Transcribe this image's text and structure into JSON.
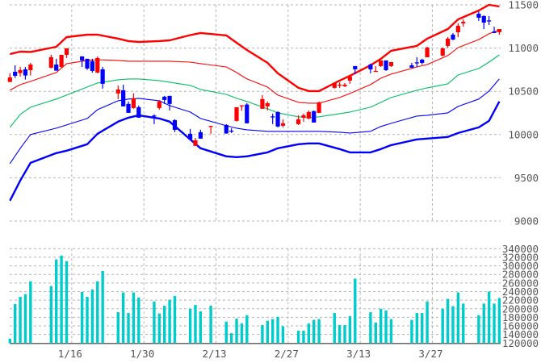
{
  "chart_data": [
    {
      "type": "candlestick",
      "ylim": [
        9000,
        11500
      ],
      "yticks": [
        11500,
        11000,
        10500,
        10000,
        9500,
        9000
      ],
      "xticks": [
        "1/16",
        "1/30",
        "2/13",
        "2/27",
        "3/13",
        "3/27"
      ],
      "grid": true,
      "colors": {
        "up": "#ff0000",
        "down": "#0000ff",
        "upper2": "#ff0000",
        "upper1": "#ff0000",
        "middle": "#00c060",
        "lower1": "#0000ff",
        "lower2": "#0000ff"
      },
      "candle_fields": [
        "date",
        "open",
        "high",
        "low",
        "close"
      ],
      "candles": [
        [
          "1/4",
          10608,
          10708,
          10608,
          10661
        ],
        [
          "1/5",
          10726,
          10801,
          10655,
          10680
        ],
        [
          "1/6",
          10711,
          10782,
          10671,
          10745
        ],
        [
          "1/7",
          10754,
          10782,
          10636,
          10683
        ],
        [
          "1/8",
          10745,
          10829,
          10683,
          10810
        ],
        [
          "1/12",
          10773,
          10922,
          10764,
          10894
        ],
        [
          "1/13",
          10810,
          10876,
          10739,
          10739
        ],
        [
          "1/14",
          10782,
          10922,
          10773,
          10922
        ],
        [
          "1/15",
          10922,
          10997,
          10885,
          10997
        ],
        [
          "1/18",
          10904,
          10904,
          10782,
          10857
        ],
        [
          "1/19",
          10876,
          10876,
          10748,
          10764
        ],
        [
          "1/20",
          10848,
          10876,
          10717,
          10736
        ],
        [
          "1/21",
          10717,
          10904,
          10708,
          10885
        ],
        [
          "1/22",
          10754,
          10782,
          10531,
          10587
        ],
        [
          "1/25",
          10475,
          10568,
          10410,
          10521
        ],
        [
          "1/26",
          10512,
          10577,
          10326,
          10326
        ],
        [
          "1/27",
          10354,
          10382,
          10251,
          10251
        ],
        [
          "1/28",
          10307,
          10475,
          10298,
          10419
        ],
        [
          "1/29",
          10316,
          10335,
          10195,
          10195
        ],
        [
          "2/1",
          10220,
          10233,
          10121,
          10207
        ],
        [
          "2/2",
          10307,
          10400,
          10288,
          10382
        ],
        [
          "2/3",
          10438,
          10447,
          10354,
          10400
        ],
        [
          "2/4",
          10447,
          10447,
          10279,
          10354
        ],
        [
          "2/5",
          10167,
          10177,
          10028,
          10055
        ],
        [
          "2/8",
          10009,
          10065,
          9944,
          9944
        ],
        [
          "2/9",
          9869,
          9962,
          9869,
          9934
        ],
        [
          "2/10",
          10028,
          10056,
          9953,
          9953
        ],
        [
          "2/12",
          10090,
          10102,
          10009,
          10100
        ],
        [
          "2/15",
          10111,
          10120,
          10010,
          10012
        ],
        [
          "2/16",
          10045,
          10074,
          10018,
          10040
        ],
        [
          "2/17",
          10158,
          10316,
          10150,
          10316
        ],
        [
          "2/18",
          10330,
          10338,
          10276,
          10338
        ],
        [
          "2/19",
          10347,
          10363,
          10130,
          10130
        ],
        [
          "2/22",
          10298,
          10456,
          10298,
          10410
        ],
        [
          "2/23",
          10326,
          10382,
          10279,
          10363
        ],
        [
          "2/24",
          10210,
          10242,
          10121,
          10200
        ],
        [
          "2/25",
          10260,
          10270,
          10083,
          10093
        ],
        [
          "2/26",
          10102,
          10177,
          10083,
          10130
        ],
        [
          "3/1",
          10121,
          10223,
          10111,
          10177
        ],
        [
          "3/2",
          10195,
          10242,
          10149,
          10223
        ],
        [
          "3/3",
          10186,
          10279,
          10177,
          10260
        ],
        [
          "3/4",
          10270,
          10279,
          10139,
          10139
        ],
        [
          "3/5",
          10251,
          10382,
          10251,
          10372
        ],
        [
          "3/8",
          10540,
          10596,
          10531,
          10596
        ],
        [
          "3/9",
          10570,
          10605,
          10540,
          10577
        ],
        [
          "3/10",
          10559,
          10596,
          10549,
          10577
        ],
        [
          "3/11",
          10624,
          10680,
          10587,
          10671
        ],
        [
          "3/12",
          10792,
          10792,
          10699,
          10754
        ],
        [
          "3/15",
          10810,
          10820,
          10708,
          10754
        ],
        [
          "3/16",
          10726,
          10792,
          10726,
          10736
        ],
        [
          "3/17",
          10792,
          10857,
          10782,
          10857
        ],
        [
          "3/18",
          10857,
          10857,
          10736,
          10745
        ],
        [
          "3/19",
          10792,
          10838,
          10782,
          10838
        ],
        [
          "3/23",
          10801,
          10829,
          10773,
          10773
        ],
        [
          "3/24",
          10835,
          10894,
          10782,
          10825
        ],
        [
          "3/25",
          10866,
          10876,
          10810,
          10829
        ],
        [
          "3/26",
          10894,
          11015,
          10894,
          11006
        ],
        [
          "3/29",
          10913,
          11006,
          10904,
          10997
        ],
        [
          "3/30",
          11025,
          11127,
          11006,
          11109
        ],
        [
          "3/31",
          11155,
          11174,
          11090,
          11099
        ],
        [
          "4/1",
          11183,
          11286,
          11127,
          11258
        ],
        [
          "4/2",
          11286,
          11332,
          11248,
          11304
        ],
        [
          "4/5",
          11397,
          11425,
          11314,
          11351
        ],
        [
          "4/6",
          11370,
          11379,
          11220,
          11295
        ],
        [
          "4/7",
          11320,
          11370,
          11267,
          11310
        ],
        [
          "4/8",
          11192,
          11248,
          11174,
          11174
        ],
        [
          "4/9",
          11183,
          11220,
          11155,
          11220
        ]
      ],
      "bands": {
        "dates": [
          "1/4",
          "1/6",
          "1/8",
          "1/13",
          "1/15",
          "1/19",
          "1/21",
          "1/25",
          "1/27",
          "1/29",
          "2/2",
          "2/4",
          "2/8",
          "2/10",
          "2/15",
          "2/17",
          "2/19",
          "2/23",
          "2/25",
          "3/1",
          "3/3",
          "3/5",
          "3/9",
          "3/11",
          "3/15",
          "3/17",
          "3/19",
          "3/24",
          "3/26",
          "3/30",
          "4/1",
          "4/5",
          "4/7",
          "4/9"
        ],
        "upper2": [
          10931,
          10959,
          10955,
          11015,
          11127,
          11155,
          11155,
          11109,
          11081,
          11071,
          11081,
          11090,
          11150,
          11174,
          11146,
          11062,
          10978,
          10829,
          10708,
          10540,
          10503,
          10503,
          10624,
          10680,
          10801,
          10876,
          10969,
          11025,
          11109,
          11220,
          11332,
          11435,
          11500,
          11481
        ],
        "upper1": [
          10512,
          10577,
          10615,
          10717,
          10820,
          10857,
          10866,
          10857,
          10848,
          10848,
          10848,
          10848,
          10838,
          10820,
          10782,
          10717,
          10643,
          10549,
          10456,
          10372,
          10363,
          10363,
          10428,
          10475,
          10577,
          10652,
          10699,
          10782,
          10810,
          10913,
          11006,
          11099,
          11165,
          11211
        ],
        "middle": [
          10083,
          10233,
          10316,
          10410,
          10456,
          10549,
          10596,
          10633,
          10643,
          10643,
          10624,
          10605,
          10568,
          10521,
          10465,
          10419,
          10382,
          10298,
          10251,
          10205,
          10195,
          10205,
          10242,
          10260,
          10316,
          10372,
          10428,
          10512,
          10540,
          10587,
          10689,
          10764,
          10838,
          10922
        ],
        "lower1": [
          9664,
          9841,
          10000,
          10074,
          10111,
          10186,
          10288,
          10391,
          10410,
          10419,
          10391,
          10335,
          10260,
          10186,
          10102,
          10074,
          10055,
          10037,
          10037,
          10037,
          10037,
          10037,
          10027,
          10018,
          10037,
          10093,
          10130,
          10214,
          10223,
          10251,
          10326,
          10410,
          10503,
          10643
        ],
        "lower2": [
          9235,
          9468,
          9673,
          9785,
          9813,
          9888,
          10009,
          10149,
          10195,
          10223,
          10186,
          10149,
          9944,
          9841,
          9748,
          9739,
          9748,
          9794,
          9841,
          9888,
          9897,
          9897,
          9832,
          9794,
          9794,
          9832,
          9878,
          9944,
          9953,
          9972,
          10018,
          10083,
          10158,
          10382
        ]
      }
    },
    {
      "type": "bar",
      "ylim": [
        120000,
        340000
      ],
      "yticks": [
        340000,
        320000,
        300000,
        280000,
        260000,
        240000,
        220000,
        200000,
        180000,
        160000,
        140000,
        120000
      ],
      "xticks": [
        "1/16",
        "1/30",
        "2/13",
        "2/27",
        "3/13",
        "3/27"
      ],
      "grid": true,
      "color": "#00cccc",
      "values": [
        130000,
        211000,
        228000,
        234000,
        264000,
        253000,
        315000,
        324000,
        311000,
        239000,
        228000,
        245000,
        264000,
        288000,
        192000,
        238000,
        190000,
        238000,
        226000,
        217000,
        189000,
        207000,
        221000,
        230000,
        200000,
        209000,
        194000,
        207000,
        170000,
        143000,
        177000,
        166000,
        185000,
        162000,
        172000,
        176000,
        181000,
        159000,
        149000,
        149000,
        166000,
        174000,
        176000,
        190000,
        162000,
        162000,
        183000,
        270000,
        192000,
        168000,
        200000,
        196000,
        176000,
        174000,
        190000,
        190000,
        217000,
        200000,
        223000,
        206000,
        238000,
        212000,
        185000,
        212000,
        240000,
        212000,
        225000
      ]
    }
  ]
}
